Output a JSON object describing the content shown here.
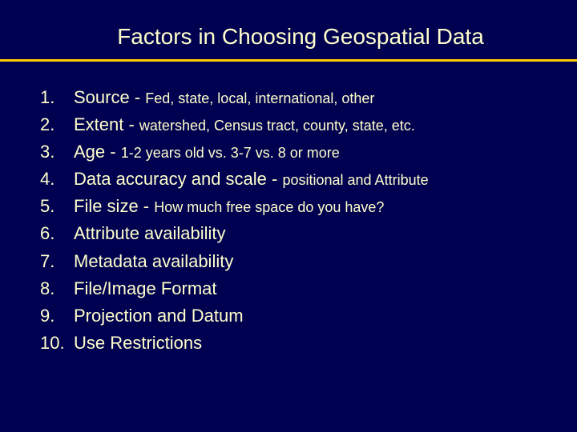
{
  "title": "Factors in Choosing Geospatial Data",
  "colors": {
    "background": "#000050",
    "text": "#ffffcc",
    "divider": "#ffcc00"
  },
  "typography": {
    "title_fontsize": 28,
    "item_fontsize": 22,
    "detail_fontsize": 18,
    "font_family": "Arial"
  },
  "items": [
    {
      "num": "1.",
      "main": "Source - ",
      "detail": "Fed, state, local, international, other"
    },
    {
      "num": "2.",
      "main": "Extent - ",
      "detail": "watershed, Census tract, county, state, etc."
    },
    {
      "num": "3.",
      "main": "Age - ",
      "detail": "1-2 years old vs. 3-7 vs. 8 or more"
    },
    {
      "num": "4.",
      "main": "Data accuracy and scale - ",
      "detail": "positional and Attribute"
    },
    {
      "num": "5.",
      "main": "File size - ",
      "detail": "How much free space do you have?"
    },
    {
      "num": "6.",
      "main": "Attribute availability",
      "detail": ""
    },
    {
      "num": "7.",
      "main": "Metadata availability",
      "detail": ""
    },
    {
      "num": "8.",
      "main": "File/Image Format",
      "detail": ""
    },
    {
      "num": "9.",
      "main": "Projection and Datum",
      "detail": ""
    },
    {
      "num": "10.",
      "main": "Use Restrictions",
      "detail": ""
    }
  ]
}
